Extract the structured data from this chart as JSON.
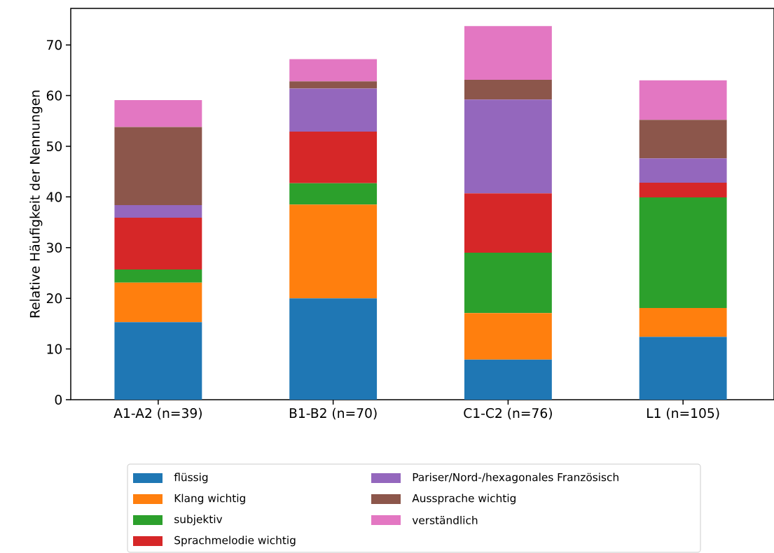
{
  "chart_data": {
    "type": "bar",
    "stacked": true,
    "ylabel": "Relative Häufigkeit der Nennungen",
    "categories": [
      "A1-A2 (n=39)",
      "B1-B2 (n=70)",
      "C1-C2 (n=76)",
      "L1 (n=105)"
    ],
    "ylim": [
      0,
      77.2
    ],
    "yticks": [
      0,
      10,
      20,
      30,
      40,
      50,
      60,
      70
    ],
    "legend": "bottom",
    "series": [
      {
        "name": "flüssig",
        "color": "#1f77b4",
        "values": [
          15.3,
          20.0,
          7.9,
          12.4
        ]
      },
      {
        "name": "Klang wichtig",
        "color": "#ff7f0e",
        "values": [
          7.8,
          18.5,
          9.2,
          5.7
        ]
      },
      {
        "name": "subjektiv",
        "color": "#2ca02c",
        "values": [
          2.6,
          4.2,
          11.9,
          21.8
        ]
      },
      {
        "name": "Sprachmelodie wichtig",
        "color": "#d62728",
        "values": [
          10.2,
          10.2,
          11.7,
          2.9
        ]
      },
      {
        "name": "Pariser/Nord-/hexagonales Französisch",
        "color": "#9467bd",
        "values": [
          2.5,
          8.5,
          18.5,
          4.8
        ]
      },
      {
        "name": "Aussprache wichtig",
        "color": "#8c564b",
        "values": [
          15.4,
          1.4,
          3.9,
          7.6
        ]
      },
      {
        "name": "verständlich",
        "color": "#e377c2",
        "values": [
          5.3,
          4.4,
          10.6,
          7.8
        ]
      }
    ]
  }
}
